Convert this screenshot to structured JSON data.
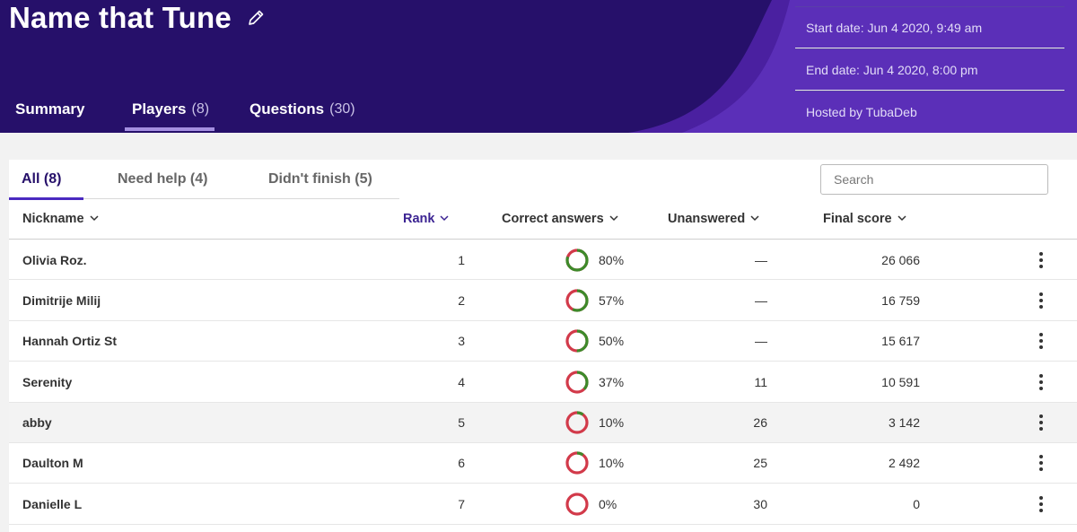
{
  "header": {
    "title": "Name that Tune",
    "edit_icon": "pencil-icon",
    "tabs": [
      {
        "label": "Summary",
        "count": ""
      },
      {
        "label": "Players",
        "count": "(8)"
      },
      {
        "label": "Questions",
        "count": "(30)"
      }
    ],
    "info": {
      "start": "Start date: Jun 4 2020, 9:49 am",
      "end": "End date: Jun 4 2020, 8:00 pm",
      "host": "Hosted by TubaDeb"
    },
    "colors": {
      "bg": "#26106a",
      "accent": "#5b2fb8"
    }
  },
  "filters": [
    {
      "label": "All (8)"
    },
    {
      "label": "Need help (4)"
    },
    {
      "label": "Didn't finish (5)"
    }
  ],
  "search": {
    "placeholder": "Search",
    "value": ""
  },
  "columns": {
    "nickname": "Nickname",
    "rank": "Rank",
    "correct": "Correct answers",
    "unanswered": "Unanswered",
    "score": "Final score"
  },
  "players": [
    {
      "nickname": "Olivia Roz.",
      "rank": "1",
      "correct_pct": 80,
      "correct": "80%",
      "unanswered": "—",
      "score": "26 066"
    },
    {
      "nickname": "Dimitrije Milij",
      "rank": "2",
      "correct_pct": 57,
      "correct": "57%",
      "unanswered": "—",
      "score": "16 759"
    },
    {
      "nickname": "Hannah Ortiz St",
      "rank": "3",
      "correct_pct": 50,
      "correct": "50%",
      "unanswered": "—",
      "score": "15 617"
    },
    {
      "nickname": "Serenity",
      "rank": "4",
      "correct_pct": 37,
      "correct": "37%",
      "unanswered": "11",
      "score": "10 591"
    },
    {
      "nickname": "abby",
      "rank": "5",
      "correct_pct": 10,
      "correct": "10%",
      "unanswered": "26",
      "score": "3 142"
    },
    {
      "nickname": "Daulton M",
      "rank": "6",
      "correct_pct": 10,
      "correct": "10%",
      "unanswered": "25",
      "score": "2 492"
    },
    {
      "nickname": "Danielle L",
      "rank": "7",
      "correct_pct": 0,
      "correct": "0%",
      "unanswered": "30",
      "score": "0"
    }
  ],
  "donut_colors": {
    "correct": "#3d8a2a",
    "incorrect": "#d23a4a"
  }
}
